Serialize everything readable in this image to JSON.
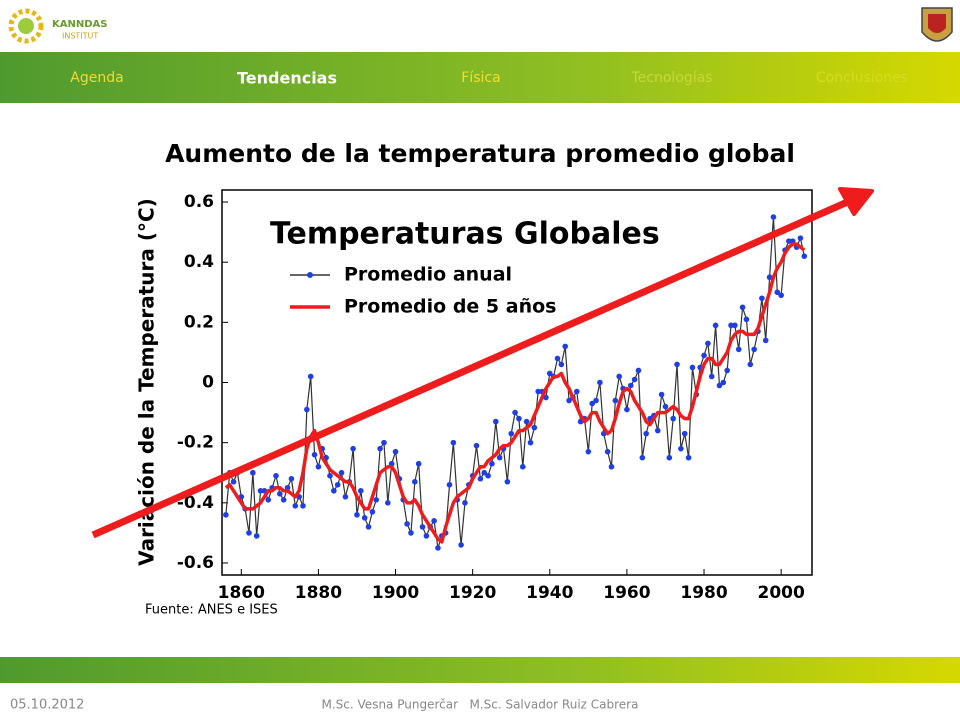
{
  "header": {
    "logo_name": "KANNDAS",
    "logo_sub": "INSTITUT"
  },
  "nav": {
    "items": [
      "Agenda",
      "Tendencias",
      "Física",
      "Tecnologías",
      "Conclusiones"
    ]
  },
  "slide_title": "Aumento de la temperatura promedio global",
  "source": "Fuente:  ANES e ISES",
  "footer": {
    "date": "05.10.2012",
    "authors": "M.Sc. Vesna Pungerčar   M.Sc. Salvador Ruiz Cabrera"
  },
  "chart_data": {
    "type": "line",
    "title": "Temperaturas Globales",
    "y_label": "Variación de la Temperatura (°C)",
    "x": [
      1856,
      1857,
      1858,
      1859,
      1860,
      1861,
      1862,
      1863,
      1864,
      1865,
      1866,
      1867,
      1868,
      1869,
      1870,
      1871,
      1872,
      1873,
      1874,
      1875,
      1876,
      1877,
      1878,
      1879,
      1880,
      1881,
      1882,
      1883,
      1884,
      1885,
      1886,
      1887,
      1888,
      1889,
      1890,
      1891,
      1892,
      1893,
      1894,
      1895,
      1896,
      1897,
      1898,
      1899,
      1900,
      1901,
      1902,
      1903,
      1904,
      1905,
      1906,
      1907,
      1908,
      1909,
      1910,
      1911,
      1912,
      1913,
      1914,
      1915,
      1916,
      1917,
      1918,
      1919,
      1920,
      1921,
      1922,
      1923,
      1924,
      1925,
      1926,
      1927,
      1928,
      1929,
      1930,
      1931,
      1932,
      1933,
      1934,
      1935,
      1936,
      1937,
      1938,
      1939,
      1940,
      1941,
      1942,
      1943,
      1944,
      1945,
      1946,
      1947,
      1948,
      1949,
      1950,
      1951,
      1952,
      1953,
      1954,
      1955,
      1956,
      1957,
      1958,
      1959,
      1960,
      1961,
      1962,
      1963,
      1964,
      1965,
      1966,
      1967,
      1968,
      1969,
      1970,
      1971,
      1972,
      1973,
      1974,
      1975,
      1976,
      1977,
      1978,
      1979,
      1980,
      1981,
      1982,
      1983,
      1984,
      1985,
      1986,
      1987,
      1988,
      1989,
      1990,
      1991,
      1992,
      1993,
      1994,
      1995,
      1996,
      1997,
      1998,
      1999,
      2000,
      2001,
      2002,
      2003,
      2004,
      2005,
      2006
    ],
    "series": [
      {
        "name": "Promedio anual",
        "color": "#333333",
        "marker_color": "#1f3fe6",
        "values": [
          -0.44,
          -0.3,
          -0.33,
          -0.3,
          -0.38,
          -0.42,
          -0.5,
          -0.3,
          -0.51,
          -0.36,
          -0.36,
          -0.39,
          -0.35,
          -0.31,
          -0.37,
          -0.39,
          -0.35,
          -0.32,
          -0.41,
          -0.38,
          -0.41,
          -0.09,
          0.02,
          -0.24,
          -0.28,
          -0.22,
          -0.25,
          -0.31,
          -0.36,
          -0.34,
          -0.3,
          -0.38,
          -0.33,
          -0.22,
          -0.44,
          -0.36,
          -0.45,
          -0.48,
          -0.43,
          -0.39,
          -0.22,
          -0.2,
          -0.4,
          -0.27,
          -0.23,
          -0.32,
          -0.39,
          -0.47,
          -0.5,
          -0.33,
          -0.27,
          -0.48,
          -0.51,
          -0.48,
          -0.46,
          -0.55,
          -0.51,
          -0.5,
          -0.34,
          -0.2,
          -0.39,
          -0.54,
          -0.4,
          -0.34,
          -0.31,
          -0.21,
          -0.32,
          -0.3,
          -0.31,
          -0.27,
          -0.13,
          -0.25,
          -0.22,
          -0.33,
          -0.17,
          -0.1,
          -0.12,
          -0.28,
          -0.13,
          -0.2,
          -0.15,
          -0.03,
          -0.03,
          -0.05,
          0.03,
          0.02,
          0.08,
          0.06,
          0.12,
          -0.06,
          -0.05,
          -0.03,
          -0.13,
          -0.12,
          -0.23,
          -0.07,
          -0.06,
          0.0,
          -0.17,
          -0.23,
          -0.28,
          -0.06,
          0.02,
          -0.02,
          -0.09,
          -0.01,
          0.01,
          0.04,
          -0.25,
          -0.17,
          -0.12,
          -0.11,
          -0.16,
          -0.04,
          -0.08,
          -0.25,
          -0.12,
          0.06,
          -0.22,
          -0.17,
          -0.25,
          0.05,
          -0.04,
          0.05,
          0.09,
          0.13,
          0.02,
          0.19,
          -0.01,
          0.0,
          0.04,
          0.19,
          0.19,
          0.11,
          0.25,
          0.21,
          0.06,
          0.11,
          0.17,
          0.28,
          0.14,
          0.35,
          0.55,
          0.3,
          0.29,
          0.44,
          0.47,
          0.47,
          0.45,
          0.48,
          0.42
        ]
      },
      {
        "name": "Promedio de 5 años",
        "color": "#ee1c1c",
        "values": [
          -0.35,
          -0.34,
          -0.36,
          -0.38,
          -0.4,
          -0.42,
          -0.42,
          -0.42,
          -0.41,
          -0.4,
          -0.38,
          -0.36,
          -0.36,
          -0.35,
          -0.35,
          -0.36,
          -0.36,
          -0.37,
          -0.38,
          -0.36,
          -0.3,
          -0.22,
          -0.18,
          -0.16,
          -0.2,
          -0.25,
          -0.27,
          -0.29,
          -0.3,
          -0.31,
          -0.32,
          -0.33,
          -0.33,
          -0.35,
          -0.38,
          -0.4,
          -0.42,
          -0.42,
          -0.38,
          -0.34,
          -0.3,
          -0.29,
          -0.28,
          -0.28,
          -0.3,
          -0.34,
          -0.38,
          -0.4,
          -0.4,
          -0.39,
          -0.41,
          -0.44,
          -0.46,
          -0.48,
          -0.5,
          -0.52,
          -0.53,
          -0.48,
          -0.44,
          -0.4,
          -0.38,
          -0.37,
          -0.36,
          -0.35,
          -0.32,
          -0.3,
          -0.28,
          -0.28,
          -0.26,
          -0.25,
          -0.24,
          -0.22,
          -0.21,
          -0.21,
          -0.2,
          -0.18,
          -0.16,
          -0.16,
          -0.15,
          -0.14,
          -0.11,
          -0.08,
          -0.05,
          -0.02,
          0.0,
          0.02,
          0.02,
          0.03,
          0.0,
          -0.02,
          -0.05,
          -0.08,
          -0.11,
          -0.13,
          -0.12,
          -0.1,
          -0.1,
          -0.13,
          -0.15,
          -0.17,
          -0.16,
          -0.12,
          -0.07,
          -0.03,
          -0.02,
          -0.03,
          -0.06,
          -0.08,
          -0.1,
          -0.13,
          -0.14,
          -0.12,
          -0.1,
          -0.1,
          -0.1,
          -0.09,
          -0.08,
          -0.09,
          -0.11,
          -0.12,
          -0.12,
          -0.08,
          -0.03,
          0.02,
          0.06,
          0.08,
          0.08,
          0.06,
          0.06,
          0.08,
          0.1,
          0.14,
          0.16,
          0.17,
          0.17,
          0.16,
          0.16,
          0.16,
          0.18,
          0.22,
          0.26,
          0.3,
          0.35,
          0.38,
          0.4,
          0.43,
          0.45,
          0.46,
          0.46,
          0.45,
          0.44
        ]
      }
    ],
    "xlim": [
      1855,
      2008
    ],
    "xticks": [
      1860,
      1880,
      1900,
      1920,
      1940,
      1960,
      1980,
      2000
    ],
    "ylim": [
      -0.64,
      0.64
    ],
    "yticks": [
      -0.6,
      -0.4,
      -0.2,
      0,
      0.2,
      0.4,
      0.6
    ],
    "grid": false,
    "legend": "upper left"
  }
}
